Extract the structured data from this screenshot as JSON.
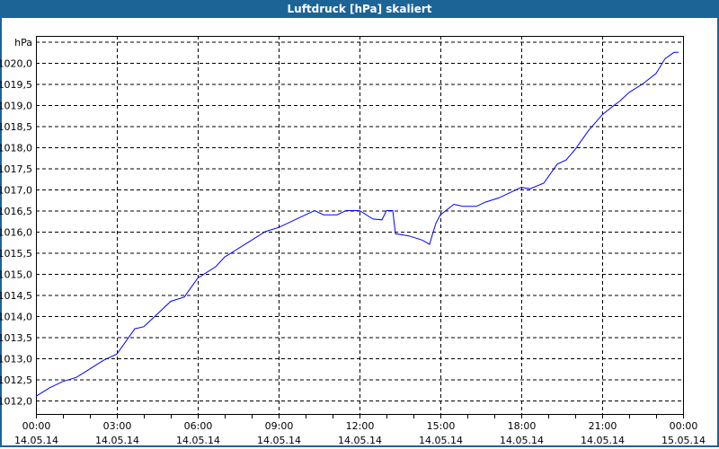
{
  "window": {
    "title": "Luftdruck [hPa] skaliert"
  },
  "chart_data": {
    "type": "line",
    "title": "Luftdruck [hPa] skaliert",
    "ylabel": "hPa",
    "ylim": [
      1011.7,
      1020.64
    ],
    "yticks": [
      "1012,0",
      "1012,5",
      "1013,0",
      "1013,5",
      "1014,0",
      "1014,5",
      "1015,0",
      "1015,5",
      "1016,0",
      "1016,5",
      "1017,0",
      "1017,5",
      "1018,0",
      "1018,5",
      "1019,0",
      "1019,5",
      "1020,0"
    ],
    "xticks": [
      [
        "00:00",
        "14.05.14"
      ],
      [
        "03:00",
        "14.05.14"
      ],
      [
        "06:00",
        "14.05.14"
      ],
      [
        "09:00",
        "14.05.14"
      ],
      [
        "12:00",
        "14.05.14"
      ],
      [
        "15:00",
        "14.05.14"
      ],
      [
        "18:00",
        "14.05.14"
      ],
      [
        "21:00",
        "14.05.14"
      ],
      [
        "00:00",
        "15.05.14"
      ]
    ],
    "xlim": [
      "14.05.14 00:00",
      "15.05.14 00:00"
    ],
    "grid": true,
    "line_color": "#0000ff",
    "series": [
      {
        "x": [
          "00:00",
          "00:30",
          "01:00",
          "01:30",
          "02:00",
          "02:30",
          "03:00",
          "03:40",
          "04:00",
          "04:30",
          "05:00",
          "05:30",
          "06:00",
          "06:40",
          "07:00",
          "08:00",
          "08:30",
          "09:00",
          "10:00",
          "10:20",
          "10:40",
          "11:10",
          "11:30",
          "12:00",
          "12:30",
          "12:50",
          "13:00",
          "13:14",
          "13:20",
          "13:50",
          "14:20",
          "14:36",
          "14:40",
          "14:50",
          "15:00",
          "15:30",
          "15:50",
          "16:20",
          "16:40",
          "17:10",
          "17:30",
          "18:00",
          "18:20",
          "18:50",
          "19:20",
          "19:40",
          "20:00",
          "20:30",
          "21:00",
          "21:20",
          "21:40",
          "22:00",
          "22:30",
          "23:00",
          "23:20",
          "23:40",
          "23:50"
        ],
        "y": [
          1012.1,
          1012.3,
          1012.45,
          1012.55,
          1012.75,
          1012.95,
          1013.1,
          1013.7,
          1013.75,
          1014.05,
          1014.35,
          1014.45,
          1014.9,
          1015.17,
          1015.4,
          1015.8,
          1016.0,
          1016.1,
          1016.4,
          1016.5,
          1016.4,
          1016.4,
          1016.5,
          1016.5,
          1016.3,
          1016.28,
          1016.5,
          1016.5,
          1015.95,
          1015.9,
          1015.8,
          1015.7,
          1015.85,
          1016.2,
          1016.4,
          1016.65,
          1016.6,
          1016.6,
          1016.7,
          1016.8,
          1016.9,
          1017.05,
          1017.02,
          1017.15,
          1017.6,
          1017.7,
          1017.95,
          1018.4,
          1018.77,
          1018.94,
          1019.1,
          1019.3,
          1019.5,
          1019.75,
          1020.1,
          1020.25,
          1020.25
        ]
      }
    ]
  }
}
